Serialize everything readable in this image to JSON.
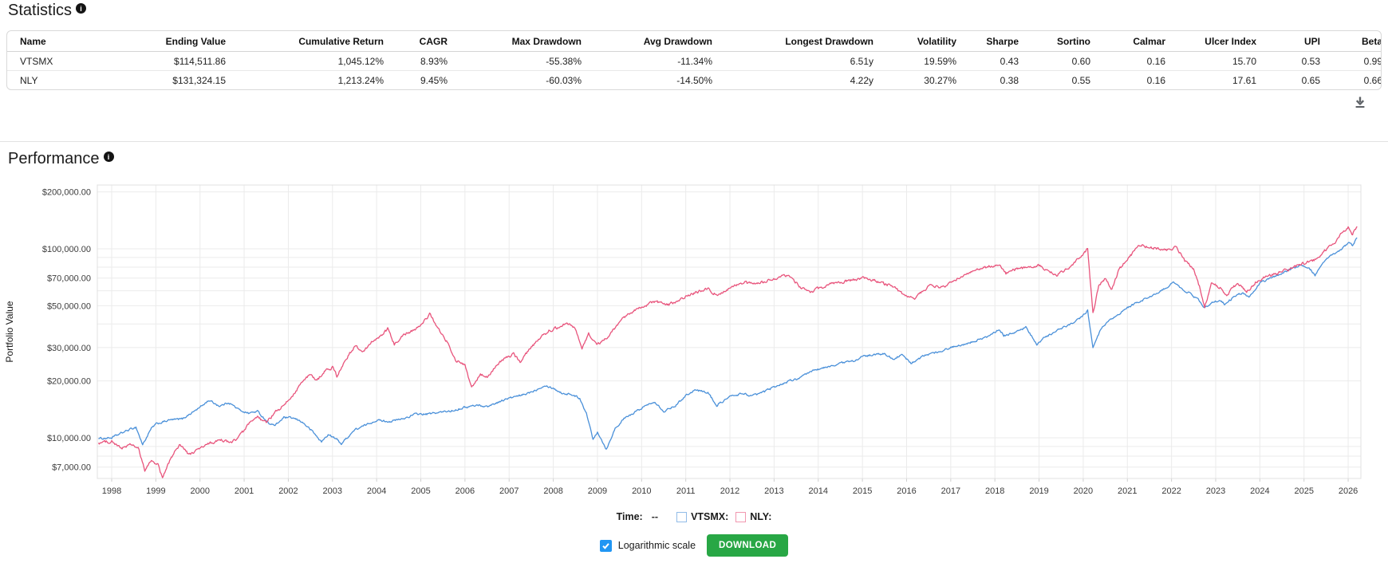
{
  "statistics": {
    "title": "Statistics",
    "columns": [
      "Name",
      "Ending Value",
      "Cumulative Return",
      "CAGR",
      "Max Drawdown",
      "Avg Drawdown",
      "Longest Drawdown",
      "Volatility",
      "Sharpe",
      "Sortino",
      "Calmar",
      "Ulcer Index",
      "UPI",
      "Beta"
    ],
    "rows": [
      [
        "VTSMX",
        "$114,511.86",
        "1,045.12%",
        "8.93%",
        "-55.38%",
        "-11.34%",
        "6.51y",
        "19.59%",
        "0.43",
        "0.60",
        "0.16",
        "15.70",
        "0.53",
        "0.99"
      ],
      [
        "NLY",
        "$131,324.15",
        "1,213.24%",
        "9.45%",
        "-60.03%",
        "-14.50%",
        "4.22y",
        "30.27%",
        "0.38",
        "0.55",
        "0.16",
        "17.61",
        "0.65",
        "0.66"
      ]
    ]
  },
  "performance": {
    "title": "Performance",
    "legend": {
      "time_label": "Time:",
      "time_value": "--",
      "series_labels": [
        "VTSMX:",
        "NLY:"
      ]
    },
    "controls": {
      "log_scale_label": "Logarithmic scale",
      "log_scale_checked": true,
      "download_button_label": "DOWNLOAD"
    }
  },
  "chart_data": {
    "type": "line",
    "log_scale": true,
    "ylabel": "Portfolio Value",
    "xlabel": "",
    "x_range": [
      1997.7,
      2026.25
    ],
    "ylim": [
      6100,
      216000
    ],
    "grid": true,
    "legend_position": "bottom",
    "x_ticks": [
      1998,
      1999,
      2000,
      2001,
      2002,
      2003,
      2004,
      2005,
      2006,
      2007,
      2008,
      2009,
      2010,
      2011,
      2012,
      2013,
      2014,
      2015,
      2016,
      2017,
      2018,
      2019,
      2020,
      2021,
      2022,
      2023,
      2024,
      2025,
      2026
    ],
    "y_gridlines": [
      {
        "v": 200000,
        "label": "$200,000.00"
      },
      {
        "v": 100000,
        "label": "$100,000.00"
      },
      {
        "v": 90000,
        "label": null
      },
      {
        "v": 80000,
        "label": null
      },
      {
        "v": 70000,
        "label": "$70,000.00"
      },
      {
        "v": 60000,
        "label": null
      },
      {
        "v": 50000,
        "label": "$50,000.00"
      },
      {
        "v": 40000,
        "label": null
      },
      {
        "v": 30000,
        "label": "$30,000.00"
      },
      {
        "v": 20000,
        "label": "$20,000.00"
      },
      {
        "v": 10000,
        "label": "$10,000.00"
      },
      {
        "v": 9000,
        "label": null
      },
      {
        "v": 8000,
        "label": null
      },
      {
        "v": 7000,
        "label": "$7,000.00"
      }
    ],
    "series": [
      {
        "name": "VTSMX",
        "color": "#4a90d9",
        "noise": 0.0045,
        "points": [
          [
            1997.7,
            9900
          ],
          [
            1998.0,
            10000
          ],
          [
            1998.3,
            10800
          ],
          [
            1998.55,
            11400
          ],
          [
            1998.7,
            9200
          ],
          [
            1998.9,
            11200
          ],
          [
            1999.0,
            11800
          ],
          [
            1999.3,
            12400
          ],
          [
            1999.6,
            12600
          ],
          [
            1999.8,
            13500
          ],
          [
            2000.0,
            14500
          ],
          [
            2000.2,
            15800
          ],
          [
            2000.45,
            14700
          ],
          [
            2000.65,
            15400
          ],
          [
            2000.9,
            14000
          ],
          [
            2001.1,
            13500
          ],
          [
            2001.3,
            13800
          ],
          [
            2001.55,
            12000
          ],
          [
            2001.7,
            11600
          ],
          [
            2001.9,
            12800
          ],
          [
            2002.1,
            12700
          ],
          [
            2002.3,
            12200
          ],
          [
            2002.55,
            10800
          ],
          [
            2002.75,
            9500
          ],
          [
            2002.9,
            10400
          ],
          [
            2003.1,
            9800
          ],
          [
            2003.2,
            9300
          ],
          [
            2003.5,
            11000
          ],
          [
            2003.8,
            11800
          ],
          [
            2004.0,
            12400
          ],
          [
            2004.3,
            12200
          ],
          [
            2004.6,
            12600
          ],
          [
            2004.9,
            13400
          ],
          [
            2005.1,
            13300
          ],
          [
            2005.4,
            13600
          ],
          [
            2005.7,
            13900
          ],
          [
            2006.0,
            14500
          ],
          [
            2006.3,
            14900
          ],
          [
            2006.5,
            14600
          ],
          [
            2006.8,
            15600
          ],
          [
            2007.0,
            16200
          ],
          [
            2007.3,
            16800
          ],
          [
            2007.6,
            17900
          ],
          [
            2007.8,
            19000
          ],
          [
            2008.0,
            18300
          ],
          [
            2008.2,
            17200
          ],
          [
            2008.4,
            17000
          ],
          [
            2008.6,
            16200
          ],
          [
            2008.75,
            13500
          ],
          [
            2008.9,
            9800
          ],
          [
            2009.0,
            10800
          ],
          [
            2009.2,
            8700
          ],
          [
            2009.4,
            11200
          ],
          [
            2009.6,
            12600
          ],
          [
            2009.8,
            13400
          ],
          [
            2010.0,
            14400
          ],
          [
            2010.3,
            15600
          ],
          [
            2010.5,
            13800
          ],
          [
            2010.8,
            15000
          ],
          [
            2011.0,
            16800
          ],
          [
            2011.2,
            17900
          ],
          [
            2011.5,
            17400
          ],
          [
            2011.7,
            14800
          ],
          [
            2011.8,
            15400
          ],
          [
            2012.0,
            16500
          ],
          [
            2012.3,
            17200
          ],
          [
            2012.5,
            16600
          ],
          [
            2012.8,
            17600
          ],
          [
            2013.0,
            18600
          ],
          [
            2013.3,
            19800
          ],
          [
            2013.6,
            20800
          ],
          [
            2013.9,
            22800
          ],
          [
            2014.2,
            23600
          ],
          [
            2014.5,
            24800
          ],
          [
            2014.8,
            25600
          ],
          [
            2015.0,
            26800
          ],
          [
            2015.2,
            27400
          ],
          [
            2015.5,
            27800
          ],
          [
            2015.7,
            26200
          ],
          [
            2015.9,
            27400
          ],
          [
            2016.1,
            24800
          ],
          [
            2016.4,
            27200
          ],
          [
            2016.7,
            28400
          ],
          [
            2017.0,
            30000
          ],
          [
            2017.3,
            31400
          ],
          [
            2017.6,
            32800
          ],
          [
            2017.9,
            34800
          ],
          [
            2018.1,
            37400
          ],
          [
            2018.2,
            34600
          ],
          [
            2018.5,
            36600
          ],
          [
            2018.7,
            38400
          ],
          [
            2018.95,
            31000
          ],
          [
            2019.1,
            33600
          ],
          [
            2019.4,
            36800
          ],
          [
            2019.6,
            38800
          ],
          [
            2019.9,
            42400
          ],
          [
            2020.1,
            47000
          ],
          [
            2020.22,
            29800
          ],
          [
            2020.4,
            37600
          ],
          [
            2020.6,
            41600
          ],
          [
            2020.8,
            44800
          ],
          [
            2021.0,
            48800
          ],
          [
            2021.2,
            51600
          ],
          [
            2021.5,
            55600
          ],
          [
            2021.8,
            60400
          ],
          [
            2022.05,
            66800
          ],
          [
            2022.2,
            62000
          ],
          [
            2022.4,
            58400
          ],
          [
            2022.6,
            54000
          ],
          [
            2022.75,
            48400
          ],
          [
            2022.9,
            52000
          ],
          [
            2023.1,
            53600
          ],
          [
            2023.2,
            50800
          ],
          [
            2023.4,
            55200
          ],
          [
            2023.6,
            58400
          ],
          [
            2023.75,
            55600
          ],
          [
            2024.0,
            66000
          ],
          [
            2024.2,
            69200
          ],
          [
            2024.5,
            74400
          ],
          [
            2024.7,
            78000
          ],
          [
            2024.9,
            81600
          ],
          [
            2025.1,
            80000
          ],
          [
            2025.25,
            72400
          ],
          [
            2025.5,
            88000
          ],
          [
            2025.7,
            94000
          ],
          [
            2025.9,
            102000
          ],
          [
            2026.0,
            108000
          ],
          [
            2026.1,
            104000
          ],
          [
            2026.2,
            114512
          ]
        ]
      },
      {
        "name": "NLY",
        "color": "#e8547c",
        "noise": 0.0065,
        "points": [
          [
            1997.7,
            9400
          ],
          [
            1998.0,
            9600
          ],
          [
            1998.2,
            8800
          ],
          [
            1998.45,
            9200
          ],
          [
            1998.6,
            8800
          ],
          [
            1998.75,
            6700
          ],
          [
            1998.9,
            7600
          ],
          [
            1999.05,
            7200
          ],
          [
            1999.15,
            6100
          ],
          [
            1999.35,
            7900
          ],
          [
            1999.55,
            9300
          ],
          [
            1999.75,
            8100
          ],
          [
            2000.0,
            8800
          ],
          [
            2000.25,
            9400
          ],
          [
            2000.5,
            9700
          ],
          [
            2000.7,
            9400
          ],
          [
            2000.9,
            10200
          ],
          [
            2001.1,
            11800
          ],
          [
            2001.3,
            12800
          ],
          [
            2001.5,
            12000
          ],
          [
            2001.7,
            13600
          ],
          [
            2001.9,
            14800
          ],
          [
            2002.1,
            16800
          ],
          [
            2002.3,
            19600
          ],
          [
            2002.5,
            21600
          ],
          [
            2002.65,
            20000
          ],
          [
            2002.8,
            22400
          ],
          [
            2003.0,
            23600
          ],
          [
            2003.1,
            21200
          ],
          [
            2003.3,
            26000
          ],
          [
            2003.5,
            30400
          ],
          [
            2003.7,
            28800
          ],
          [
            2003.9,
            32400
          ],
          [
            2004.1,
            34400
          ],
          [
            2004.25,
            37600
          ],
          [
            2004.4,
            31200
          ],
          [
            2004.6,
            35200
          ],
          [
            2004.8,
            36800
          ],
          [
            2005.0,
            39200
          ],
          [
            2005.2,
            45200
          ],
          [
            2005.45,
            36000
          ],
          [
            2005.6,
            32000
          ],
          [
            2005.8,
            25600
          ],
          [
            2006.0,
            24000
          ],
          [
            2006.15,
            18400
          ],
          [
            2006.35,
            21600
          ],
          [
            2006.5,
            20800
          ],
          [
            2006.7,
            24000
          ],
          [
            2006.9,
            26400
          ],
          [
            2007.1,
            27600
          ],
          [
            2007.25,
            25200
          ],
          [
            2007.5,
            30400
          ],
          [
            2007.7,
            33600
          ],
          [
            2007.9,
            36800
          ],
          [
            2008.1,
            38400
          ],
          [
            2008.3,
            40800
          ],
          [
            2008.5,
            38000
          ],
          [
            2008.65,
            29600
          ],
          [
            2008.8,
            35200
          ],
          [
            2009.0,
            31200
          ],
          [
            2009.2,
            33600
          ],
          [
            2009.4,
            38400
          ],
          [
            2009.6,
            43200
          ],
          [
            2009.8,
            46400
          ],
          [
            2010.0,
            48800
          ],
          [
            2010.3,
            52800
          ],
          [
            2010.6,
            50400
          ],
          [
            2010.9,
            54400
          ],
          [
            2011.2,
            58400
          ],
          [
            2011.5,
            61600
          ],
          [
            2011.7,
            56800
          ],
          [
            2012.0,
            62400
          ],
          [
            2012.3,
            66400
          ],
          [
            2012.6,
            64800
          ],
          [
            2012.9,
            68800
          ],
          [
            2013.1,
            70400
          ],
          [
            2013.3,
            72800
          ],
          [
            2013.55,
            64000
          ],
          [
            2013.8,
            58400
          ],
          [
            2014.0,
            61600
          ],
          [
            2014.3,
            65600
          ],
          [
            2014.6,
            67200
          ],
          [
            2014.9,
            68800
          ],
          [
            2015.1,
            70400
          ],
          [
            2015.4,
            66400
          ],
          [
            2015.7,
            63200
          ],
          [
            2015.95,
            56800
          ],
          [
            2016.2,
            54400
          ],
          [
            2016.5,
            64000
          ],
          [
            2016.8,
            62400
          ],
          [
            2017.0,
            66400
          ],
          [
            2017.3,
            72800
          ],
          [
            2017.6,
            77600
          ],
          [
            2017.9,
            80800
          ],
          [
            2018.1,
            82400
          ],
          [
            2018.25,
            74400
          ],
          [
            2018.5,
            78400
          ],
          [
            2018.8,
            80000
          ],
          [
            2019.0,
            81600
          ],
          [
            2019.2,
            76000
          ],
          [
            2019.4,
            72800
          ],
          [
            2019.6,
            77600
          ],
          [
            2019.8,
            84800
          ],
          [
            2020.0,
            94400
          ],
          [
            2020.1,
            99200
          ],
          [
            2020.22,
            45600
          ],
          [
            2020.35,
            64000
          ],
          [
            2020.5,
            69600
          ],
          [
            2020.65,
            60800
          ],
          [
            2020.8,
            76800
          ],
          [
            2021.0,
            88800
          ],
          [
            2021.3,
            105600
          ],
          [
            2021.5,
            101600
          ],
          [
            2021.8,
            99200
          ],
          [
            2022.0,
            98400
          ],
          [
            2022.1,
            102400
          ],
          [
            2022.3,
            86400
          ],
          [
            2022.5,
            78400
          ],
          [
            2022.65,
            61600
          ],
          [
            2022.75,
            48800
          ],
          [
            2022.9,
            65600
          ],
          [
            2023.1,
            62400
          ],
          [
            2023.25,
            56800
          ],
          [
            2023.5,
            66400
          ],
          [
            2023.7,
            59200
          ],
          [
            2023.9,
            66400
          ],
          [
            2024.1,
            70400
          ],
          [
            2024.4,
            74400
          ],
          [
            2024.7,
            78400
          ],
          [
            2024.9,
            82400
          ],
          [
            2025.1,
            84800
          ],
          [
            2025.3,
            88800
          ],
          [
            2025.5,
            99200
          ],
          [
            2025.7,
            108800
          ],
          [
            2025.9,
            124800
          ],
          [
            2026.0,
            130400
          ],
          [
            2026.1,
            119200
          ],
          [
            2026.2,
            131324
          ]
        ]
      }
    ]
  }
}
